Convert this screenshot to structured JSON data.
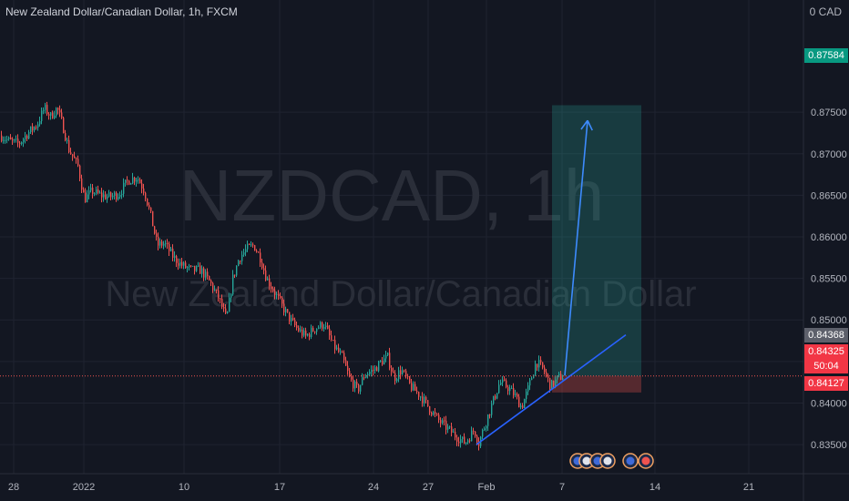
{
  "header": {
    "title": "New Zealand Dollar/Canadian Dollar, 1h, FXCM",
    "currency": "0 CAD"
  },
  "watermark": {
    "symbol": "NZDCAD, 1h",
    "name": "New Zealand Dollar/Canadian Dollar"
  },
  "price_labels": {
    "target": "0.87584",
    "current_high": "0.84368",
    "current": "0.84325",
    "countdown": "50:04",
    "stop": "0.84127"
  },
  "colors": {
    "background": "#131722",
    "bull": "#26a69a",
    "bear": "#ef5350",
    "trendline": "#2962ff",
    "profit_zone": "#1e4a44",
    "loss_zone": "#5a2429"
  },
  "chart_data": {
    "type": "candlestick",
    "title": "New Zealand Dollar/Canadian Dollar, 1h, FXCM",
    "x_ticks": [
      "28",
      "2022",
      "10",
      "17",
      "24",
      "27",
      "Feb",
      "7",
      "14",
      "21"
    ],
    "y_ticks": [
      "0.83500",
      "0.84000",
      "0.84500",
      "0.85000",
      "0.85500",
      "0.86000",
      "0.86500",
      "0.87000",
      "0.87500"
    ],
    "ylim": [
      0.8315,
      0.8885
    ],
    "price_path": [
      [
        0,
        0.8722
      ],
      [
        10,
        0.8715
      ],
      [
        20,
        0.8712
      ],
      [
        30,
        0.8725
      ],
      [
        40,
        0.8735
      ],
      [
        48,
        0.8755
      ],
      [
        55,
        0.8745
      ],
      [
        62,
        0.8755
      ],
      [
        68,
        0.8735
      ],
      [
        75,
        0.8705
      ],
      [
        85,
        0.8685
      ],
      [
        92,
        0.8645
      ],
      [
        100,
        0.8655
      ],
      [
        110,
        0.865
      ],
      [
        120,
        0.8648
      ],
      [
        130,
        0.8652
      ],
      [
        140,
        0.8668
      ],
      [
        150,
        0.8672
      ],
      [
        158,
        0.8655
      ],
      [
        165,
        0.8625
      ],
      [
        172,
        0.859
      ],
      [
        180,
        0.8592
      ],
      [
        190,
        0.8575
      ],
      [
        200,
        0.8565
      ],
      [
        210,
        0.856
      ],
      [
        220,
        0.856
      ],
      [
        230,
        0.8545
      ],
      [
        240,
        0.8525
      ],
      [
        248,
        0.85
      ],
      [
        255,
        0.855
      ],
      [
        262,
        0.8575
      ],
      [
        270,
        0.8585
      ],
      [
        278,
        0.859
      ],
      [
        285,
        0.8575
      ],
      [
        292,
        0.855
      ],
      [
        300,
        0.8535
      ],
      [
        310,
        0.8515
      ],
      [
        318,
        0.85
      ],
      [
        325,
        0.849
      ],
      [
        335,
        0.848
      ],
      [
        345,
        0.849
      ],
      [
        355,
        0.8495
      ],
      [
        365,
        0.847
      ],
      [
        375,
        0.8455
      ],
      [
        383,
        0.843
      ],
      [
        392,
        0.8415
      ],
      [
        400,
        0.8435
      ],
      [
        410,
        0.844
      ],
      [
        418,
        0.845
      ],
      [
        425,
        0.8455
      ],
      [
        432,
        0.843
      ],
      [
        440,
        0.844
      ],
      [
        450,
        0.842
      ],
      [
        460,
        0.841
      ],
      [
        470,
        0.8395
      ],
      [
        480,
        0.838
      ],
      [
        490,
        0.837
      ],
      [
        500,
        0.836
      ],
      [
        510,
        0.8352
      ],
      [
        520,
        0.8368
      ],
      [
        525,
        0.8352
      ],
      [
        532,
        0.8375
      ],
      [
        540,
        0.84
      ],
      [
        548,
        0.8425
      ],
      [
        556,
        0.842
      ],
      [
        564,
        0.841
      ],
      [
        572,
        0.8395
      ],
      [
        580,
        0.842
      ],
      [
        588,
        0.845
      ],
      [
        596,
        0.844
      ],
      [
        604,
        0.842
      ],
      [
        612,
        0.843
      ],
      [
        618,
        0.8433
      ]
    ],
    "annotations": {
      "long_position": {
        "entry": 0.84325,
        "target": 0.87584,
        "stop": 0.84127
      },
      "trendline": {
        "from": 0.835,
        "to": 0.8482
      },
      "arrow": {
        "from": 0.8433,
        "to": 0.874
      }
    },
    "grid": true,
    "legend": "none"
  }
}
